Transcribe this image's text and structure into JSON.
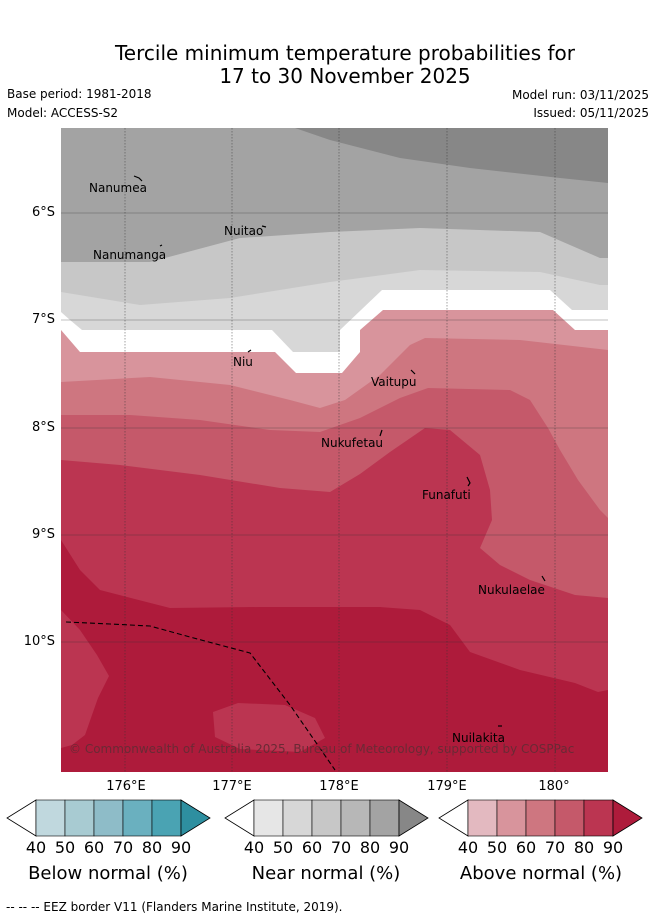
{
  "title_line1": "Tercile minimum temperature probabilities for",
  "title_line2": "17 to 30 November 2025",
  "base_period": "Base period: 1981-2018",
  "model": "Model: ACCESS-S2",
  "model_run": "Model run: 03/11/2025",
  "issued": "Issued: 05/11/2025",
  "lat_labels": [
    "6°S",
    "7°S",
    "8°S",
    "9°S",
    "10°S"
  ],
  "lon_labels": [
    "176°E",
    "177°E",
    "178°E",
    "179°E",
    "180°"
  ],
  "places": [
    "Nanumea",
    "Nuitao",
    "Nanumanga",
    "Niu",
    "Vaitupu",
    "Nukufetau",
    "Funafuti",
    "Nukulaelae",
    "Nuilakita"
  ],
  "copyright": "© Commonwealth of Australia 2025, Bureau of Meteorology, supported by COSPPac",
  "colorbars": [
    {
      "title": "Below normal (%)",
      "ticks": [
        "40",
        "50",
        "60",
        "70",
        "80",
        "90"
      ],
      "colors": [
        "#ffffff",
        "#c0d8de",
        "#a8cbd2",
        "#8ebcc8",
        "#6ab0bf",
        "#4aa3b3",
        "#2e8fa0"
      ]
    },
    {
      "title": "Near normal (%)",
      "ticks": [
        "40",
        "50",
        "60",
        "70",
        "80",
        "90"
      ],
      "colors": [
        "#ffffff",
        "#e6e6e6",
        "#d7d7d7",
        "#c7c7c7",
        "#b7b7b7",
        "#a3a3a3",
        "#878787"
      ]
    },
    {
      "title": "Above normal (%)",
      "ticks": [
        "40",
        "50",
        "60",
        "70",
        "80",
        "90"
      ],
      "colors": [
        "#ffffff",
        "#e3b9c0",
        "#d8949c",
        "#ce7680",
        "#c5596a",
        "#bb3551",
        "#ae1b3b"
      ]
    }
  ],
  "footnote": "--  --  -- EEZ border V11 (Flanders Marine Institute, 2019)."
}
